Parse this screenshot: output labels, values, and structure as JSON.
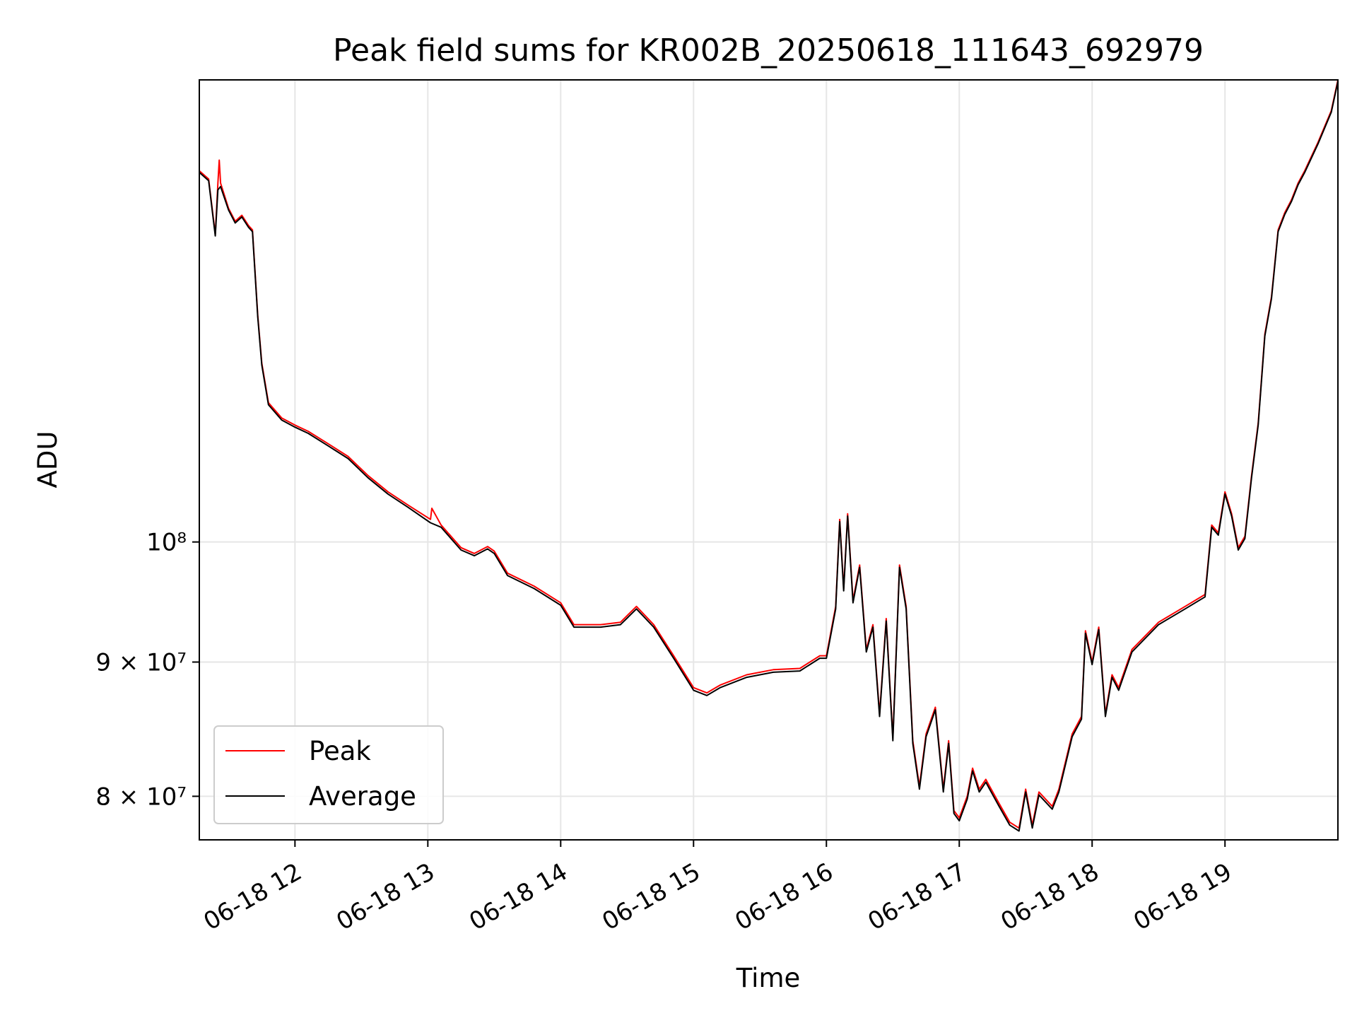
{
  "chart_data": {
    "type": "line",
    "title": "Peak field sums for KR002B_20250618_111643_692979",
    "xlabel": "Time",
    "ylabel": "ADU",
    "x_ticks": [
      "06-18 12",
      "06-18 13",
      "06-18 14",
      "06-18 15",
      "06-18 16",
      "06-18 17",
      "06-18 18",
      "06-18 19"
    ],
    "y_ticks": [
      {
        "value": 80000000,
        "label": "8 × 10⁷"
      },
      {
        "value": 90000000,
        "label": "9 × 10⁷"
      },
      {
        "value": 100000000,
        "label": "10⁸"
      }
    ],
    "x_unit": "hours since 2025-06-18 00:00",
    "xlim": [
      11.28,
      19.85
    ],
    "ylim": [
      77000000,
      150000000
    ],
    "y_scale": "log",
    "grid": true,
    "legend_position": "lower-left",
    "series": [
      {
        "name": "Peak",
        "color": "#ff0000",
        "x": [
          11.28,
          11.35,
          11.4,
          11.42,
          11.43,
          11.44,
          11.5,
          11.55,
          11.6,
          11.65,
          11.68,
          11.72,
          11.75,
          11.8,
          11.9,
          12.0,
          12.1,
          12.25,
          12.4,
          12.55,
          12.7,
          12.85,
          13.02,
          13.03,
          13.1,
          13.25,
          13.35,
          13.45,
          13.5,
          13.6,
          13.8,
          14.0,
          14.1,
          14.3,
          14.45,
          14.57,
          14.7,
          14.85,
          15.0,
          15.1,
          15.2,
          15.4,
          15.6,
          15.8,
          15.95,
          16.0,
          16.07,
          16.1,
          16.13,
          16.16,
          16.2,
          16.25,
          16.3,
          16.35,
          16.4,
          16.45,
          16.5,
          16.55,
          16.6,
          16.65,
          16.7,
          16.75,
          16.82,
          16.88,
          16.92,
          16.96,
          17.0,
          17.06,
          17.1,
          17.15,
          17.2,
          17.3,
          17.38,
          17.45,
          17.5,
          17.55,
          17.6,
          17.7,
          17.75,
          17.85,
          17.92,
          17.95,
          18.0,
          18.05,
          18.1,
          18.15,
          18.2,
          18.3,
          18.5,
          18.7,
          18.85,
          18.9,
          18.95,
          19.0,
          19.05,
          19.1,
          19.15,
          19.2,
          19.25,
          19.3,
          19.35,
          19.4,
          19.45,
          19.5,
          19.55,
          19.6,
          19.7,
          19.8,
          19.85
        ],
        "values": [
          138500000,
          137500000,
          131000000,
          137000000,
          139800000,
          137000000,
          134000000,
          132500000,
          133200000,
          132000000,
          131500000,
          122000000,
          117000000,
          113000000,
          111500000,
          110800000,
          110200000,
          109000000,
          107800000,
          106000000,
          104500000,
          103300000,
          102000000,
          103000000,
          101500000,
          99500000,
          99000000,
          99600000,
          99200000,
          97300000,
          96200000,
          94800000,
          93000000,
          93000000,
          93200000,
          94500000,
          93000000,
          90500000,
          88000000,
          87600000,
          88200000,
          89000000,
          89400000,
          89500000,
          90500000,
          90500000,
          94500000,
          102000000,
          96000000,
          102500000,
          95000000,
          98000000,
          91000000,
          93000000,
          86000000,
          93500000,
          84200000,
          98000000,
          94500000,
          84000000,
          80700000,
          84500000,
          86500000,
          80500000,
          84000000,
          79000000,
          78500000,
          80000000,
          82000000,
          80500000,
          81200000,
          79500000,
          78200000,
          77800000,
          80500000,
          78000000,
          80300000,
          79300000,
          80500000,
          84500000,
          85800000,
          92500000,
          90000000,
          92800000,
          86000000,
          89000000,
          88000000,
          91000000,
          93200000,
          94500000,
          95500000,
          101500000,
          100800000,
          104500000,
          102500000,
          99500000,
          100500000,
          106000000,
          111000000,
          120000000,
          124000000,
          131500000,
          133500000,
          135000000,
          137000000,
          138500000,
          142000000,
          146000000,
          150000000
        ]
      },
      {
        "name": "Average",
        "color": "#000000",
        "x": [
          11.28,
          11.35,
          11.4,
          11.42,
          11.44,
          11.5,
          11.55,
          11.6,
          11.65,
          11.68,
          11.72,
          11.75,
          11.8,
          11.9,
          12.0,
          12.1,
          12.25,
          12.4,
          12.55,
          12.7,
          12.85,
          13.02,
          13.1,
          13.25,
          13.35,
          13.45,
          13.5,
          13.6,
          13.8,
          14.0,
          14.1,
          14.3,
          14.45,
          14.57,
          14.7,
          14.85,
          15.0,
          15.1,
          15.2,
          15.4,
          15.6,
          15.8,
          15.95,
          16.0,
          16.07,
          16.1,
          16.13,
          16.16,
          16.2,
          16.25,
          16.3,
          16.35,
          16.4,
          16.45,
          16.5,
          16.55,
          16.6,
          16.65,
          16.7,
          16.75,
          16.82,
          16.88,
          16.92,
          16.96,
          17.0,
          17.06,
          17.1,
          17.15,
          17.2,
          17.3,
          17.38,
          17.45,
          17.5,
          17.55,
          17.6,
          17.7,
          17.75,
          17.85,
          17.92,
          17.95,
          18.0,
          18.05,
          18.1,
          18.15,
          18.2,
          18.3,
          18.5,
          18.7,
          18.85,
          18.9,
          18.95,
          19.0,
          19.05,
          19.1,
          19.15,
          19.2,
          19.25,
          19.3,
          19.35,
          19.4,
          19.45,
          19.5,
          19.55,
          19.6,
          19.7,
          19.8,
          19.85
        ],
        "values": [
          138300000,
          137300000,
          130800000,
          136200000,
          136600000,
          133800000,
          132300000,
          133000000,
          131800000,
          131300000,
          121800000,
          116800000,
          112800000,
          111300000,
          110600000,
          110000000,
          108800000,
          107600000,
          105800000,
          104300000,
          103100000,
          101700000,
          101300000,
          99300000,
          98800000,
          99400000,
          99000000,
          97100000,
          96000000,
          94600000,
          92800000,
          92800000,
          93000000,
          94300000,
          92800000,
          90300000,
          87800000,
          87400000,
          88000000,
          88800000,
          89200000,
          89300000,
          90300000,
          90300000,
          94300000,
          101800000,
          95800000,
          102300000,
          94800000,
          97800000,
          90800000,
          92800000,
          85800000,
          93300000,
          84000000,
          97800000,
          94300000,
          83800000,
          80500000,
          84300000,
          86300000,
          80300000,
          83800000,
          78800000,
          78300000,
          79800000,
          81800000,
          80300000,
          81000000,
          79300000,
          78000000,
          77600000,
          80300000,
          77800000,
          80100000,
          79100000,
          80300000,
          84300000,
          85600000,
          92300000,
          89800000,
          92600000,
          85800000,
          88800000,
          87800000,
          90800000,
          93000000,
          94300000,
          95300000,
          101300000,
          100600000,
          104300000,
          102300000,
          99300000,
          100300000,
          105800000,
          110800000,
          119800000,
          123800000,
          131300000,
          133300000,
          134800000,
          136800000,
          138300000,
          141800000,
          145800000,
          149800000
        ]
      }
    ]
  }
}
